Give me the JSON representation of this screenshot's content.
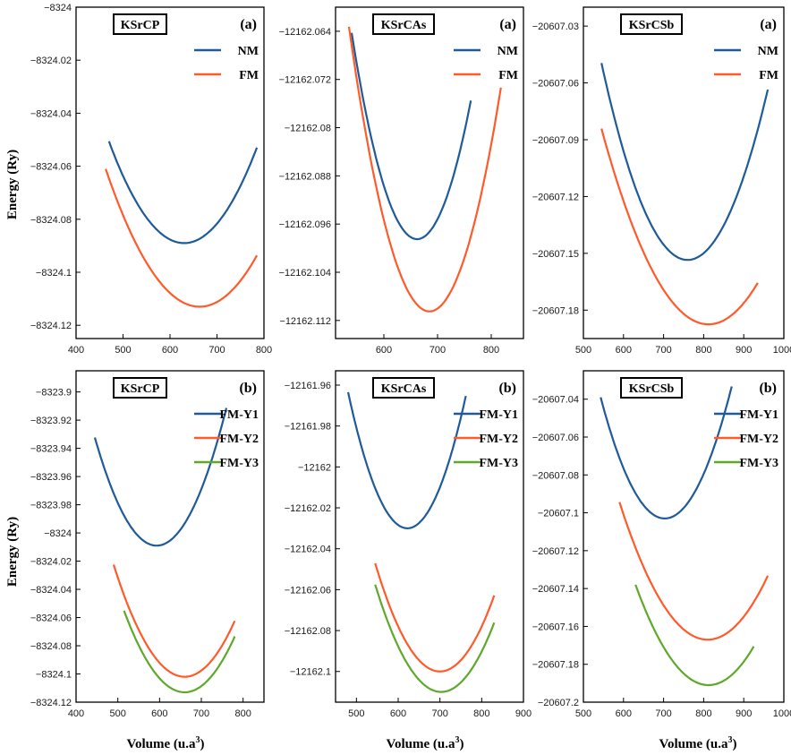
{
  "figure": {
    "ylabel": "Energy (Ry)",
    "xlabel": "Volume (u.a",
    "xlabel_sup": "3",
    "xlabel_end": ")",
    "colors": {
      "blue": "#1f5a99",
      "orange": "#ff5a2a",
      "green": "#5ea82a"
    }
  },
  "chart_data": [
    {
      "type": "line",
      "title": "KSrCP",
      "panel_label": "(a)",
      "xlim": [
        400,
        800
      ],
      "xticks": [
        400,
        500,
        600,
        700,
        800
      ],
      "ylim": [
        -8324.125,
        -8324.0
      ],
      "yticks": [
        -8324,
        -8324.02,
        -8324.04,
        -8324.06,
        -8324.08,
        -8324.1,
        -8324.12
      ],
      "ytick_labels": [
        "−8324",
        "−8324.02",
        "−8324.04",
        "−8324.06",
        "−8324.08",
        "−8324.1",
        "−8324.12"
      ],
      "series": [
        {
          "name": "NM",
          "color": "#1f5a99",
          "x_range": [
            470,
            785
          ],
          "x0": 630,
          "y0": -8324.089,
          "a": 1.5e-06
        },
        {
          "name": "FM",
          "color": "#ff5a2a",
          "x_range": [
            463,
            785
          ],
          "x0": 663,
          "y0": -8324.113,
          "a": 1.3e-06
        }
      ]
    },
    {
      "type": "line",
      "title": "KSrCAs",
      "panel_label": "(a)",
      "xlim": [
        510,
        860
      ],
      "xticks": [
        600,
        700,
        800
      ],
      "ylim": [
        -12162.115,
        -12162.06
      ],
      "yticks": [
        -12162.064,
        -12162.072,
        -12162.08,
        -12162.088,
        -12162.096,
        -12162.104,
        -12162.112
      ],
      "ytick_labels": [
        "−12162.064",
        "−12162.072",
        "−12162.08",
        "−12162.088",
        "−12162.096",
        "−12162.104",
        "−12162.112"
      ],
      "series": [
        {
          "name": "NM",
          "color": "#1f5a99",
          "x_range": [
            540,
            762
          ],
          "x0": 662,
          "y0": -12162.0985,
          "a": 2.3e-06
        },
        {
          "name": "FM",
          "color": "#ff5a2a",
          "x_range": [
            535,
            818
          ],
          "x0": 685,
          "y0": -12162.1105,
          "a": 2.1e-06
        }
      ]
    },
    {
      "type": "line",
      "title": "KSrCSb",
      "panel_label": "(a)",
      "xlim": [
        500,
        1000
      ],
      "xticks": [
        500,
        600,
        700,
        800,
        900,
        1000
      ],
      "ylim": [
        -20607.195,
        -20607.02
      ],
      "yticks": [
        -20607.03,
        -20607.06,
        -20607.09,
        -20607.12,
        -20607.15,
        -20607.18
      ],
      "ytick_labels": [
        "−20607.03",
        "−20607.06",
        "−20607.09",
        "−20607.12",
        "−20607.15",
        "−20607.18"
      ],
      "series": [
        {
          "name": "NM",
          "color": "#1f5a99",
          "x_range": [
            545,
            960
          ],
          "x0": 760,
          "y0": -20607.1535,
          "a": 2.25e-06
        },
        {
          "name": "FM",
          "color": "#ff5a2a",
          "x_range": [
            545,
            935
          ],
          "x0": 812,
          "y0": -20607.1875,
          "a": 1.45e-06
        }
      ]
    },
    {
      "type": "line",
      "title": "KSrCP",
      "panel_label": "(b)",
      "xlim": [
        400,
        850
      ],
      "xticks": [
        400,
        500,
        600,
        700,
        800
      ],
      "ylim": [
        -8324.12,
        -8323.885
      ],
      "yticks": [
        -8323.9,
        -8323.92,
        -8323.94,
        -8323.96,
        -8323.98,
        -8324,
        -8324.02,
        -8324.04,
        -8324.06,
        -8324.08,
        -8324.1,
        -8324.12
      ],
      "ytick_labels": [
        "−8323.9",
        "−8323.92",
        "−8323.94",
        "−8323.96",
        "−8323.98",
        "−8324",
        "−8324.02",
        "−8324.04",
        "−8324.06",
        "−8324.08",
        "−8324.1",
        "−8324.12"
      ],
      "series": [
        {
          "name": "FM-Y1",
          "color": "#1f5a99",
          "x_range": [
            445,
            760
          ],
          "x0": 593,
          "y0": -8324.009,
          "a": 3.5e-06
        },
        {
          "name": "FM-Y2",
          "color": "#ff5a2a",
          "x_range": [
            490,
            780
          ],
          "x0": 660,
          "y0": -8324.102,
          "a": 2.75e-06
        },
        {
          "name": "FM-Y3",
          "color": "#5ea82a",
          "x_range": [
            515,
            780
          ],
          "x0": 660,
          "y0": -8324.113,
          "a": 2.75e-06
        }
      ]
    },
    {
      "type": "line",
      "title": "KSrCAs",
      "panel_label": "(b)",
      "xlim": [
        450,
        900
      ],
      "xticks": [
        500,
        600,
        700,
        800,
        900
      ],
      "ylim": [
        -12162.115,
        -12161.953
      ],
      "yticks": [
        -12161.96,
        -12161.98,
        -12162,
        -12162.02,
        -12162.04,
        -12162.06,
        -12162.08,
        -12162.1
      ],
      "ytick_labels": [
        "−12161.96",
        "−12161.98",
        "−12162",
        "−12162.02",
        "−12162.04",
        "−12162.06",
        "−12162.08",
        "−12162.1"
      ],
      "series": [
        {
          "name": "FM-Y1",
          "color": "#1f5a99",
          "x_range": [
            480,
            762
          ],
          "x0": 622,
          "y0": -12162.03,
          "a": 3.3e-06
        },
        {
          "name": "FM-Y2",
          "color": "#ff5a2a",
          "x_range": [
            545,
            830
          ],
          "x0": 700,
          "y0": -12162.1,
          "a": 2.2e-06
        },
        {
          "name": "FM-Y3",
          "color": "#5ea82a",
          "x_range": [
            545,
            830
          ],
          "x0": 703,
          "y0": -12162.11,
          "a": 2.1e-06
        }
      ]
    },
    {
      "type": "line",
      "title": "KSrCSb",
      "panel_label": "(b)",
      "xlim": [
        500,
        1000
      ],
      "xticks": [
        500,
        600,
        700,
        800,
        900,
        1000
      ],
      "ylim": [
        -20607.2,
        -20607.025
      ],
      "yticks": [
        -20607.04,
        -20607.06,
        -20607.08,
        -20607.1,
        -20607.12,
        -20607.14,
        -20607.16,
        -20607.18,
        -20607.2
      ],
      "ytick_labels": [
        "−20607.04",
        "−20607.06",
        "−20607.08",
        "−20607.1",
        "−20607.12",
        "−20607.14",
        "−20607.16",
        "−20607.18",
        "−20607.2"
      ],
      "series": [
        {
          "name": "FM-Y1",
          "color": "#1f5a99",
          "x_range": [
            543,
            870
          ],
          "x0": 703,
          "y0": -20607.103,
          "a": 2.5e-06
        },
        {
          "name": "FM-Y2",
          "color": "#ff5a2a",
          "x_range": [
            590,
            960
          ],
          "x0": 810,
          "y0": -20607.167,
          "a": 1.5e-06
        },
        {
          "name": "FM-Y3",
          "color": "#5ea82a",
          "x_range": [
            630,
            925
          ],
          "x0": 812,
          "y0": -20607.191,
          "a": 1.6e-06
        }
      ]
    }
  ]
}
